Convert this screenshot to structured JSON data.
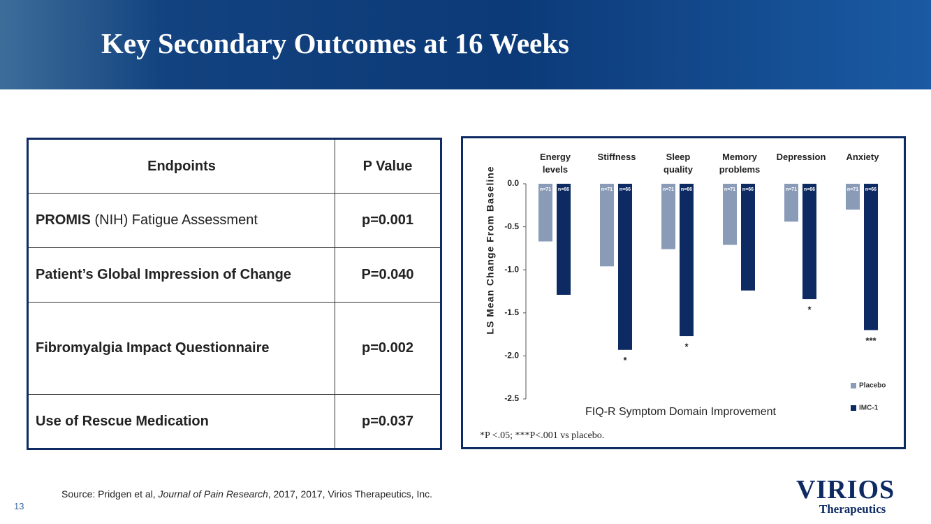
{
  "header": {
    "title": "Key Secondary Outcomes at 16 Weeks"
  },
  "table": {
    "headers": [
      "Endpoints",
      "P Value"
    ],
    "rows": [
      [
        [
          "PROMIS",
          " (NIH) Fatigue Assessment"
        ],
        "p=0.001"
      ],
      [
        "Patient’s Global Impression of Change",
        "P=0.040"
      ],
      [
        "Fibromyalgia Impact Questionnaire",
        "p=0.002"
      ],
      [
        "Use of Rescue Medication",
        "p=0.037"
      ]
    ]
  },
  "chart_data": {
    "type": "bar",
    "caption": "FIQ-R Symptom Domain Improvement",
    "ylabel": "LS Mean Change From Baseline",
    "footnote": "*P <.05; ***P<.001 vs placebo.",
    "categories": [
      "Energy levels",
      "Stiffness",
      "Sleep quality",
      "Memory problems",
      "Depression",
      "Anxiety"
    ],
    "series": [
      {
        "name": "Placebo",
        "color": "#8a9bb8",
        "values": [
          -0.67,
          -0.96,
          -0.76,
          -0.71,
          -0.44,
          -0.3
        ],
        "n_labels": [
          "n=71",
          "n=71",
          "n=71",
          "n=71",
          "n=71",
          "n=71"
        ]
      },
      {
        "name": "IMC-1",
        "color": "#0d2a63",
        "values": [
          -1.29,
          -1.93,
          -1.77,
          -1.24,
          -1.34,
          -1.7
        ],
        "n_labels": [
          "n=66",
          "n=66",
          "n=66",
          "n=66",
          "n=66",
          "n=66"
        ],
        "annotations": [
          null,
          "*",
          "*",
          null,
          "*",
          "***"
        ]
      }
    ],
    "ylim": [
      -2.5,
      0
    ],
    "yticks": [
      {
        "value": 0,
        "label": "0.0"
      },
      -0.5,
      {
        "value": -1,
        "label": "-1.0"
      },
      -1.5,
      {
        "value": -2,
        "label": "-2.0"
      },
      -2.5
    ],
    "legend": "bottom-right"
  },
  "source": [
    "Source:  Pridgen et al, ",
    "Journal of Pain Research",
    ", 2017, 2017, Virios Therapeutics, Inc."
  ],
  "page_number": "13",
  "logo": {
    "name": "VIRIOS",
    "tagline": "Therapeutics"
  }
}
